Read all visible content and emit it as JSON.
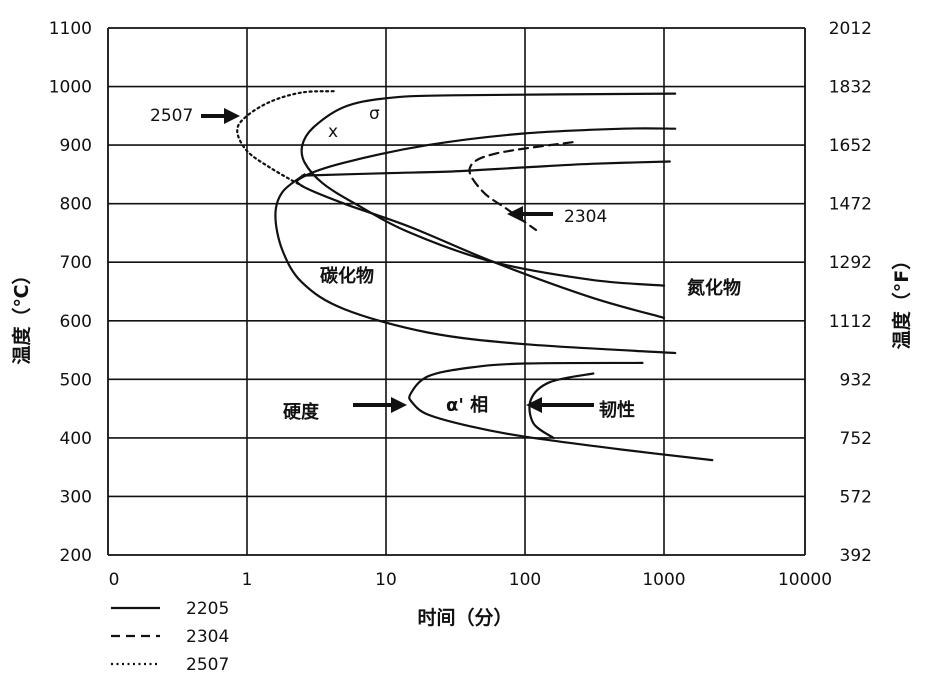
{
  "chart_data": {
    "type": "line",
    "xlabel": "时间（分）",
    "ylabel_left": "温度（℃）",
    "ylabel_right": "温度（°F）",
    "x_scale": "log",
    "x_ticks": [
      "0",
      "1",
      "10",
      "100",
      "1000",
      "10000"
    ],
    "y_left_ticks": [
      "1100",
      "1000",
      "900",
      "800",
      "700",
      "600",
      "500",
      "400",
      "300",
      "200"
    ],
    "y_right_ticks": [
      "2012",
      "1832",
      "1652",
      "1472",
      "1292",
      "1112",
      "932",
      "752",
      "572",
      "392"
    ],
    "ylim": [
      200,
      1100
    ],
    "xlim": [
      0.1,
      10000
    ],
    "grid": true,
    "legend_position": "bottom-left",
    "legend": [
      {
        "label": "2205",
        "style": "solid"
      },
      {
        "label": "2304",
        "style": "dashed"
      },
      {
        "label": "2507",
        "style": "dotted"
      }
    ],
    "annotations": {
      "grade_2507": "2507",
      "grade_2304": "2304",
      "sigma": "σ",
      "chi": "x",
      "carbide": "碳化物",
      "nitride": "氮化物",
      "hardness": "硬度",
      "alpha_prime": "α' 相",
      "toughness": "韧性"
    },
    "series": [
      {
        "name": "2205",
        "style": "solid",
        "curve": "σ",
        "points": [
          [
            1200,
            988
          ],
          [
            30,
            985
          ],
          [
            10,
            980
          ],
          [
            5,
            965
          ],
          [
            3,
            930
          ],
          [
            2.5,
            900
          ],
          [
            2.6,
            870
          ],
          [
            3.5,
            835
          ],
          [
            6,
            800
          ],
          [
            15,
            750
          ],
          [
            60,
            700
          ],
          [
            300,
            670
          ],
          [
            1000,
            660
          ]
        ]
      },
      {
        "name": "2205",
        "style": "solid",
        "curve": "χ",
        "points": [
          [
            1200,
            928
          ],
          [
            500,
            928
          ],
          [
            100,
            920
          ],
          [
            20,
            900
          ],
          [
            5,
            870
          ],
          [
            2.5,
            845
          ],
          [
            2.5,
            830
          ],
          [
            5,
            800
          ],
          [
            15,
            760
          ],
          [
            60,
            700
          ],
          [
            300,
            640
          ],
          [
            1000,
            605
          ]
        ]
      },
      {
        "name": "2205",
        "style": "solid",
        "curve": "nitride",
        "points": [
          [
            1100,
            872
          ],
          [
            300,
            868
          ],
          [
            100,
            862
          ],
          [
            30,
            855
          ],
          [
            10,
            852
          ],
          [
            2.5,
            848
          ]
        ]
      },
      {
        "name": "2205",
        "style": "solid",
        "curve": "carbide",
        "points": [
          [
            2.6,
            850
          ],
          [
            1.8,
            820
          ],
          [
            1.6,
            780
          ],
          [
            1.8,
            720
          ],
          [
            2.5,
            665
          ],
          [
            5,
            620
          ],
          [
            20,
            580
          ],
          [
            100,
            560
          ],
          [
            1200,
            545
          ]
        ]
      },
      {
        "name": "2205",
        "style": "solid",
        "curve": "α'",
        "points": [
          [
            700,
            528
          ],
          [
            100,
            527
          ],
          [
            40,
            520
          ],
          [
            20,
            505
          ],
          [
            15,
            475
          ],
          [
            15.5,
            460
          ],
          [
            20,
            440
          ],
          [
            40,
            420
          ],
          [
            100,
            402
          ],
          [
            500,
            380
          ],
          [
            2200,
            362
          ]
        ]
      },
      {
        "name": "2205",
        "style": "solid",
        "curve": "toughness",
        "points": [
          [
            310,
            510
          ],
          [
            150,
            495
          ],
          [
            110,
            465
          ],
          [
            115,
            425
          ],
          [
            160,
            400
          ]
        ]
      },
      {
        "name": "2304",
        "style": "dashed",
        "points": [
          [
            220,
            905
          ],
          [
            60,
            885
          ],
          [
            40,
            860
          ],
          [
            50,
            820
          ],
          [
            75,
            790
          ],
          [
            120,
            755
          ]
        ]
      },
      {
        "name": "2507",
        "style": "dotted",
        "points": [
          [
            4.2,
            992
          ],
          [
            2.5,
            990
          ],
          [
            1.5,
            975
          ],
          [
            1.0,
            950
          ],
          [
            0.85,
            925
          ],
          [
            1.0,
            890
          ],
          [
            1.5,
            860
          ],
          [
            2.5,
            830
          ]
        ]
      }
    ]
  }
}
